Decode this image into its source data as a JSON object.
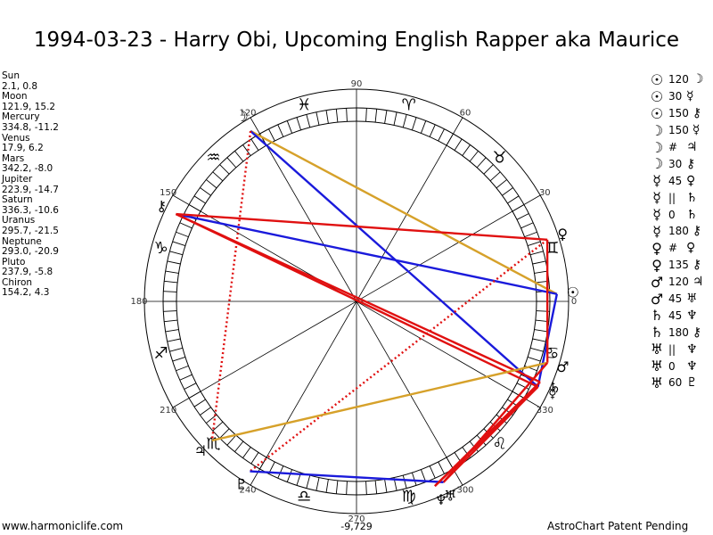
{
  "title": "1994-03-23 - Harry Obi, Upcoming English Rapper aka Maurice",
  "planets": [
    {
      "name": "Sun",
      "coords": "2.1, 0.8"
    },
    {
      "name": "Moon",
      "coords": "121.9, 15.2"
    },
    {
      "name": "Mercury",
      "coords": "334.8, -11.2"
    },
    {
      "name": "Venus",
      "coords": "17.9, 6.2"
    },
    {
      "name": "Mars",
      "coords": "342.2, -8.0"
    },
    {
      "name": "Jupiter",
      "coords": "223.9, -14.7"
    },
    {
      "name": "Saturn",
      "coords": "336.3, -10.6"
    },
    {
      "name": "Uranus",
      "coords": "295.7, -21.5"
    },
    {
      "name": "Neptune",
      "coords": "293.0, -20.9"
    },
    {
      "name": "Pluto",
      "coords": "237.9, -5.8"
    },
    {
      "name": "Chiron",
      "coords": "154.2, 4.3"
    }
  ],
  "aspects": [
    {
      "p1": "☉",
      "asp": "120",
      "p2": "☽"
    },
    {
      "p1": "☉",
      "asp": "30",
      "p2": "☿"
    },
    {
      "p1": "☉",
      "asp": "150",
      "p2": "⚷"
    },
    {
      "p1": "☽",
      "asp": "150",
      "p2": "☿"
    },
    {
      "p1": "☽",
      "asp": "#",
      "p2": "♃"
    },
    {
      "p1": "☽",
      "asp": "30",
      "p2": "⚷"
    },
    {
      "p1": "☿",
      "asp": "45",
      "p2": "♀"
    },
    {
      "p1": "☿",
      "asp": "||",
      "p2": "♄"
    },
    {
      "p1": "☿",
      "asp": "0",
      "p2": "♄"
    },
    {
      "p1": "☿",
      "asp": "180",
      "p2": "⚷"
    },
    {
      "p1": "♀",
      "asp": "#",
      "p2": "♀"
    },
    {
      "p1": "♀",
      "asp": "135",
      "p2": "⚷"
    },
    {
      "p1": "♂",
      "asp": "120",
      "p2": "♃"
    },
    {
      "p1": "♂",
      "asp": "45",
      "p2": "♅"
    },
    {
      "p1": "♄",
      "asp": "45",
      "p2": "♆"
    },
    {
      "p1": "♄",
      "asp": "180",
      "p2": "⚷"
    },
    {
      "p1": "♅",
      "asp": "||",
      "p2": "♆"
    },
    {
      "p1": "♅",
      "asp": "0",
      "p2": "♆"
    },
    {
      "p1": "♅",
      "asp": "60",
      "p2": "♇"
    }
  ],
  "wheel_degree_labels": [
    "90",
    "60",
    "30",
    "0",
    "330",
    "300",
    "270",
    "240",
    "210",
    "180",
    "150",
    "120"
  ],
  "sign_glyphs": [
    "♈",
    "♉",
    "♊",
    "♋",
    "♌",
    "♍",
    "♎",
    "♏",
    "♐",
    "♑",
    "♒",
    "♓"
  ],
  "planet_glyphs": {
    "sun": "☉",
    "moon": "☽",
    "mercury": "☿",
    "venus": "♀",
    "mars": "♂",
    "jupiter": "♃",
    "saturn": "♄",
    "uranus": "♅",
    "neptune": "♆",
    "pluto": "♇",
    "chiron": "⚷"
  },
  "chart_data": {
    "type": "astrology-wheel",
    "positions_deg": {
      "sun": 2.1,
      "moon": 121.9,
      "mercury": 334.8,
      "venus": 17.9,
      "mars": 342.2,
      "jupiter": 223.9,
      "saturn": 336.3,
      "uranus": 295.7,
      "neptune": 293.0,
      "pluto": 237.9,
      "chiron": 154.2
    },
    "aspect_lines": [
      {
        "a": "sun",
        "b": "moon",
        "color": "#d6a12a"
      },
      {
        "a": "moon",
        "b": "mercury",
        "color": "#1a1adb"
      },
      {
        "a": "moon",
        "b": "jupiter",
        "color": "#e01010",
        "style": "dotted"
      },
      {
        "a": "sun",
        "b": "mercury",
        "color": "#1a1adb"
      },
      {
        "a": "sun",
        "b": "chiron",
        "color": "#1a1adb"
      },
      {
        "a": "mercury",
        "b": "chiron",
        "color": "#e01010"
      },
      {
        "a": "saturn",
        "b": "chiron",
        "color": "#e01010"
      },
      {
        "a": "venus",
        "b": "chiron",
        "color": "#e01010"
      },
      {
        "a": "venus",
        "b": "mars",
        "color": "#e01010"
      },
      {
        "a": "venus",
        "b": "pluto",
        "color": "#e01010",
        "style": "dotted"
      },
      {
        "a": "mars",
        "b": "jupiter",
        "color": "#d6a12a"
      },
      {
        "a": "mars",
        "b": "uranus",
        "color": "#e01010"
      },
      {
        "a": "saturn",
        "b": "neptune",
        "color": "#e01010"
      },
      {
        "a": "mercury",
        "b": "uranus",
        "color": "#e01010"
      },
      {
        "a": "uranus",
        "b": "pluto",
        "color": "#1a1adb"
      },
      {
        "a": "mercury",
        "b": "neptune",
        "color": "#e01010"
      }
    ],
    "bottom_value": "-9,729"
  },
  "footer": {
    "left": "www.harmoniclife.com",
    "right": "AstroChart Patent Pending"
  }
}
